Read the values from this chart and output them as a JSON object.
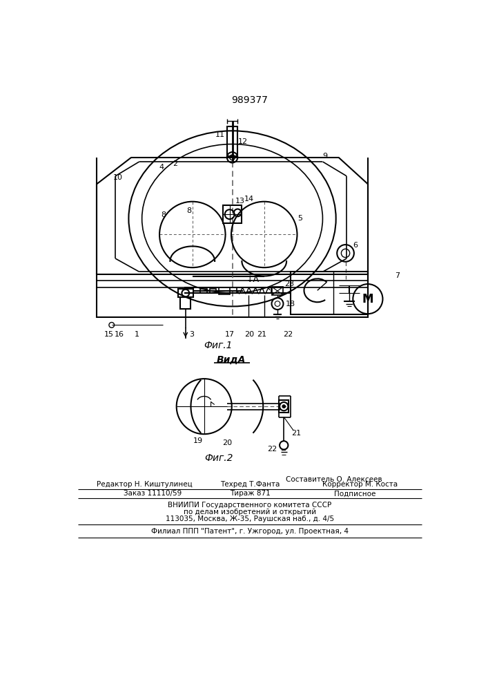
{
  "patent_number": "989377",
  "fig1_label": "Фиг.1",
  "fig2_label": "Фиг.2",
  "vid_label": "ВидА",
  "bg_color": "#ffffff",
  "line_color": "#000000",
  "footer_col1": "Редактор Н. Киштулинец",
  "footer_col2": "Техред Т.Фанта",
  "footer_col3": "Корректор М. Коста",
  "footer_comp": "Составитель О. Алексеев",
  "footer_order": "Заказ 11110/59",
  "footer_tirazh": "Тираж 871",
  "footer_podp": "Подписное",
  "footer_org1": "ВНИИПИ Государственного комитета СССР",
  "footer_org2": "по делам изобретений и открытий",
  "footer_org3": "113035, Москва, Ж-35, Раушская наб., д. 4/5",
  "footer_patent": "Филиал ППП \"Патент\", г. Ужгород, ул. Проектная, 4"
}
